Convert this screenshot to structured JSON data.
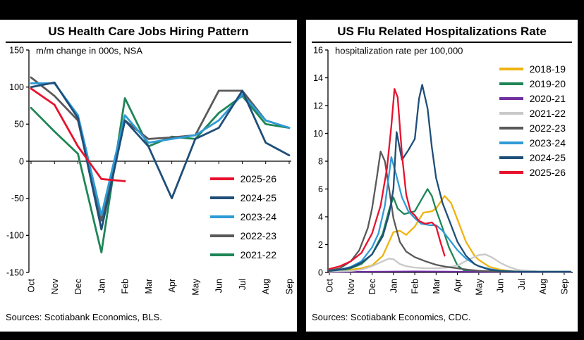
{
  "chart_data": [
    {
      "type": "line",
      "title": "US Health Care Jobs Hiring Pattern",
      "subtitle": "m/m change in 000s, NSA",
      "source": "Sources: Scotiabank Economics, BLS.",
      "categories": [
        "Oct",
        "Nov",
        "Dec",
        "Jan",
        "Feb",
        "Mar",
        "Apr",
        "May",
        "Jun",
        "Jul",
        "Aug",
        "Sep"
      ],
      "ylim": [
        -150,
        150
      ],
      "ytick": 50,
      "grid": false,
      "legend_position": "lower-right",
      "series": [
        {
          "name": "2021-22",
          "color": "#1e8656",
          "values": [
            72,
            40,
            10,
            -123,
            85,
            20,
            33,
            30,
            65,
            88,
            50,
            45
          ]
        },
        {
          "name": "2022-23",
          "color": "#595959",
          "values": [
            113,
            88,
            55,
            -80,
            55,
            30,
            32,
            35,
            95,
            95,
            55,
            45
          ]
        },
        {
          "name": "2023-24",
          "color": "#2e9bd6",
          "values": [
            105,
            105,
            62,
            -73,
            62,
            25,
            30,
            35,
            55,
            90,
            55,
            45
          ]
        },
        {
          "name": "2024-25",
          "color": "#1f4e79",
          "values": [
            100,
            106,
            58,
            -92,
            55,
            20,
            -50,
            30,
            45,
            95,
            25,
            8
          ]
        },
        {
          "name": "2025-26",
          "color": "#e8112d",
          "values": [
            98,
            76,
            20,
            -24,
            -27,
            null,
            null,
            null,
            null,
            null,
            null,
            null
          ]
        }
      ]
    },
    {
      "type": "line",
      "title": "US Flu Related Hospitalizations Rate",
      "subtitle": "hospitalization rate per 100,000",
      "source": "Sources: Scotiabank Economics, CDC.",
      "categories": [
        "Oct",
        "Nov",
        "Dec",
        "Jan",
        "Feb",
        "Mar",
        "Apr",
        "May",
        "Jun",
        "Jul",
        "Aug",
        "Sep"
      ],
      "x_unit": "months from October (0 = Oct tick, 11 = Sep tick)",
      "ylim": [
        0,
        16
      ],
      "ytick": 2,
      "grid": false,
      "legend_position": "upper-right",
      "series": [
        {
          "name": "2018-19",
          "color": "#efb310",
          "points": [
            [
              0,
              0.05
            ],
            [
              0.5,
              0.1
            ],
            [
              1,
              0.2
            ],
            [
              1.5,
              0.3
            ],
            [
              2,
              0.5
            ],
            [
              2.5,
              1.2
            ],
            [
              3,
              2.9
            ],
            [
              3.3,
              3.0
            ],
            [
              3.6,
              2.7
            ],
            [
              4,
              3.3
            ],
            [
              4.4,
              4.3
            ],
            [
              4.8,
              4.4
            ],
            [
              5,
              4.6
            ],
            [
              5.4,
              5.5
            ],
            [
              5.7,
              5.0
            ],
            [
              6,
              3.8
            ],
            [
              6.4,
              2.2
            ],
            [
              6.8,
              1.2
            ],
            [
              7,
              0.9
            ],
            [
              7.5,
              0.4
            ],
            [
              8,
              0.2
            ],
            [
              8.5,
              0.1
            ],
            [
              9,
              0.05
            ],
            [
              10,
              0.05
            ],
            [
              11.3,
              0.05
            ]
          ]
        },
        {
          "name": "2019-20",
          "color": "#1e8656",
          "points": [
            [
              0,
              0.05
            ],
            [
              0.5,
              0.1
            ],
            [
              1,
              0.3
            ],
            [
              1.5,
              0.6
            ],
            [
              2,
              1.3
            ],
            [
              2.5,
              2.8
            ],
            [
              2.8,
              4.5
            ],
            [
              3,
              5.4
            ],
            [
              3.2,
              4.6
            ],
            [
              3.5,
              4.2
            ],
            [
              4,
              4.4
            ],
            [
              4.3,
              5.2
            ],
            [
              4.6,
              6.0
            ],
            [
              4.8,
              5.5
            ],
            [
              5,
              4.5
            ],
            [
              5.3,
              3.2
            ],
            [
              5.6,
              1.8
            ],
            [
              6,
              0.5
            ],
            [
              6.3,
              0.15
            ],
            [
              7,
              0.05
            ],
            [
              8,
              0.05
            ],
            [
              9,
              0.05
            ],
            [
              10,
              0.05
            ],
            [
              11.3,
              0.05
            ]
          ]
        },
        {
          "name": "2020-21",
          "color": "#7030a0",
          "points": [
            [
              0,
              0.03
            ],
            [
              2,
              0.05
            ],
            [
              4,
              0.07
            ],
            [
              6,
              0.05
            ],
            [
              8,
              0.03
            ],
            [
              10,
              0.03
            ],
            [
              11.3,
              0.03
            ]
          ]
        },
        {
          "name": "2021-22",
          "color": "#c9c9c9",
          "points": [
            [
              0,
              0.05
            ],
            [
              1,
              0.1
            ],
            [
              1.5,
              0.2
            ],
            [
              2,
              0.45
            ],
            [
              2.5,
              0.8
            ],
            [
              2.8,
              1.0
            ],
            [
              3,
              0.95
            ],
            [
              3.3,
              0.6
            ],
            [
              3.6,
              0.45
            ],
            [
              4,
              0.35
            ],
            [
              4.5,
              0.3
            ],
            [
              5,
              0.3
            ],
            [
              5.5,
              0.35
            ],
            [
              6,
              0.5
            ],
            [
              6.5,
              0.9
            ],
            [
              7,
              1.25
            ],
            [
              7.3,
              1.3
            ],
            [
              7.6,
              1.1
            ],
            [
              8,
              0.7
            ],
            [
              8.4,
              0.4
            ],
            [
              8.8,
              0.2
            ],
            [
              9,
              0.15
            ],
            [
              9.5,
              0.1
            ],
            [
              10,
              0.05
            ],
            [
              11.3,
              0.05
            ]
          ]
        },
        {
          "name": "2022-23",
          "color": "#595959",
          "points": [
            [
              0,
              0.15
            ],
            [
              0.5,
              0.3
            ],
            [
              1,
              0.8
            ],
            [
              1.4,
              1.6
            ],
            [
              1.8,
              3.2
            ],
            [
              2,
              4.6
            ],
            [
              2.2,
              6.6
            ],
            [
              2.4,
              8.7
            ],
            [
              2.6,
              8.0
            ],
            [
              2.8,
              6.0
            ],
            [
              3,
              3.9
            ],
            [
              3.3,
              2.2
            ],
            [
              3.6,
              1.5
            ],
            [
              4,
              1.1
            ],
            [
              4.5,
              0.8
            ],
            [
              5,
              0.55
            ],
            [
              5.5,
              0.4
            ],
            [
              6,
              0.3
            ],
            [
              6.5,
              0.2
            ],
            [
              7,
              0.12
            ],
            [
              7.5,
              0.08
            ],
            [
              8,
              0.05
            ],
            [
              9,
              0.05
            ],
            [
              10,
              0.05
            ],
            [
              11.3,
              0.05
            ]
          ]
        },
        {
          "name": "2023-24",
          "color": "#2e9bd6",
          "points": [
            [
              0,
              0.1
            ],
            [
              0.5,
              0.2
            ],
            [
              1,
              0.4
            ],
            [
              1.5,
              0.8
            ],
            [
              2,
              1.8
            ],
            [
              2.3,
              2.8
            ],
            [
              2.6,
              4.8
            ],
            [
              2.9,
              8.3
            ],
            [
              3.1,
              7.2
            ],
            [
              3.4,
              5.4
            ],
            [
              3.7,
              4.4
            ],
            [
              4,
              3.9
            ],
            [
              4.3,
              3.5
            ],
            [
              4.7,
              3.4
            ],
            [
              5,
              3.4
            ],
            [
              5.3,
              3.0
            ],
            [
              5.6,
              2.4
            ],
            [
              6,
              1.6
            ],
            [
              6.4,
              1.0
            ],
            [
              6.8,
              0.6
            ],
            [
              7,
              0.45
            ],
            [
              7.5,
              0.25
            ],
            [
              8,
              0.12
            ],
            [
              8.5,
              0.08
            ],
            [
              9,
              0.05
            ],
            [
              10,
              0.05
            ],
            [
              11.3,
              0.05
            ]
          ]
        },
        {
          "name": "2024-25",
          "color": "#1f4e79",
          "points": [
            [
              0,
              0.1
            ],
            [
              0.5,
              0.2
            ],
            [
              1,
              0.35
            ],
            [
              1.5,
              0.7
            ],
            [
              2,
              1.3
            ],
            [
              2.5,
              2.6
            ],
            [
              2.8,
              4.2
            ],
            [
              3,
              6.0
            ],
            [
              3.15,
              10.1
            ],
            [
              3.4,
              8.1
            ],
            [
              3.7,
              8.8
            ],
            [
              4,
              9.6
            ],
            [
              4.2,
              12.5
            ],
            [
              4.35,
              13.5
            ],
            [
              4.6,
              11.8
            ],
            [
              4.8,
              9.0
            ],
            [
              5,
              6.8
            ],
            [
              5.3,
              5.0
            ],
            [
              5.6,
              3.8
            ],
            [
              6,
              2.2
            ],
            [
              6.4,
              1.2
            ],
            [
              6.8,
              0.6
            ],
            [
              7,
              0.45
            ],
            [
              7.5,
              0.2
            ],
            [
              8,
              0.1
            ],
            [
              9,
              0.05
            ],
            [
              10,
              0.05
            ],
            [
              11.3,
              0.05
            ]
          ]
        },
        {
          "name": "2025-26",
          "color": "#e8112d",
          "points": [
            [
              0,
              0.25
            ],
            [
              0.5,
              0.45
            ],
            [
              1,
              0.8
            ],
            [
              1.5,
              1.4
            ],
            [
              2,
              2.8
            ],
            [
              2.4,
              4.8
            ],
            [
              2.7,
              7.5
            ],
            [
              2.9,
              10.5
            ],
            [
              3.05,
              13.2
            ],
            [
              3.2,
              12.6
            ],
            [
              3.4,
              8.5
            ],
            [
              3.6,
              5.6
            ],
            [
              3.8,
              4.4
            ],
            [
              4,
              4.1
            ],
            [
              4.2,
              3.7
            ],
            [
              4.5,
              3.5
            ],
            [
              4.8,
              3.6
            ],
            [
              5,
              3.3
            ],
            [
              5.2,
              2.2
            ],
            [
              5.4,
              1.2
            ]
          ]
        }
      ]
    }
  ]
}
